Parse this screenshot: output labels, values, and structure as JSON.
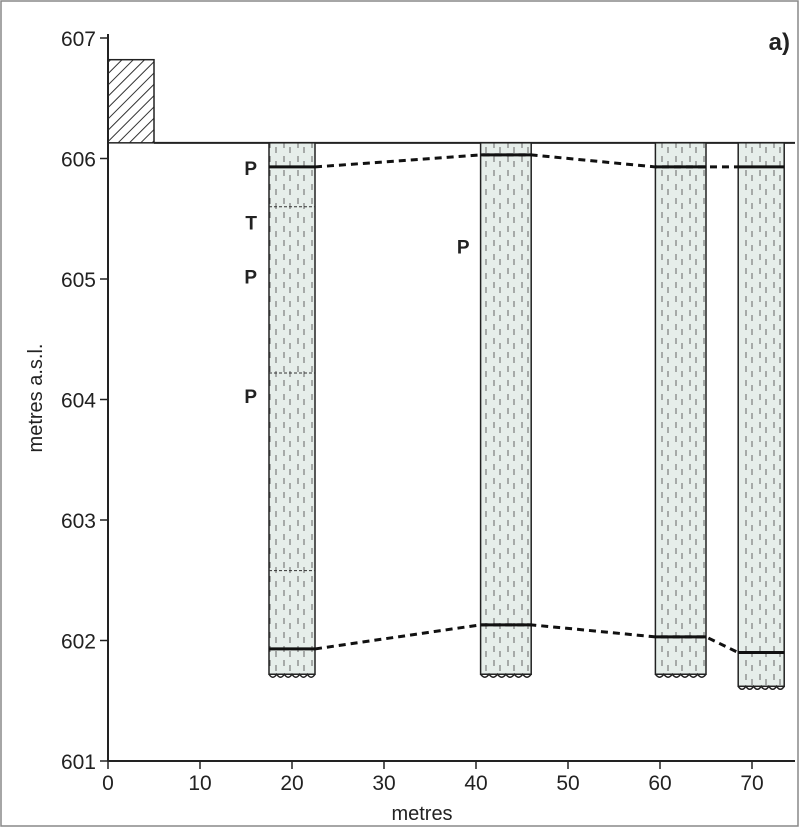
{
  "panel_label": "a)",
  "chart_data": {
    "type": "stratigraphic-cross-section",
    "xlabel": "metres",
    "ylabel": "metres a.s.l.",
    "xlim": [
      0,
      75
    ],
    "ylim": [
      601,
      607
    ],
    "x_ticks": [
      0,
      10,
      20,
      30,
      40,
      50,
      60,
      70
    ],
    "y_ticks": [
      601,
      602,
      603,
      604,
      605,
      606,
      607
    ],
    "surface_elevation": 606.13,
    "hatched_block": {
      "x": [
        0,
        5
      ],
      "y": [
        606.13,
        606.82
      ]
    },
    "columns": [
      {
        "x_left": 17.5,
        "x_right": 22.5,
        "top": 606.13,
        "bottom": 601.72,
        "upper_contact": 605.93,
        "lower_contact": 601.93,
        "facies_breaks": [
          605.6,
          604.22,
          602.58
        ]
      },
      {
        "x_left": 40.5,
        "x_right": 46,
        "top": 606.13,
        "bottom": 601.72,
        "upper_contact": 606.03,
        "lower_contact": 602.13,
        "facies_breaks": []
      },
      {
        "x_left": 59.5,
        "x_right": 65,
        "top": 606.13,
        "bottom": 601.72,
        "upper_contact": 605.93,
        "lower_contact": 602.03,
        "facies_breaks": []
      },
      {
        "x_left": 68.5,
        "x_right": 73.5,
        "top": 606.13,
        "bottom": 601.62,
        "upper_contact": 605.93,
        "lower_contact": 601.9,
        "facies_breaks": []
      }
    ],
    "correlation_lines": [
      {
        "name": "upper",
        "points": [
          [
            22.5,
            605.93
          ],
          [
            40.5,
            606.03
          ],
          [
            46,
            606.03
          ],
          [
            59.5,
            605.93
          ],
          [
            65,
            605.93
          ],
          [
            68.5,
            605.93
          ]
        ]
      },
      {
        "name": "lower",
        "points": [
          [
            22.5,
            601.93
          ],
          [
            40.5,
            602.13
          ],
          [
            46,
            602.13
          ],
          [
            59.5,
            602.03
          ],
          [
            65,
            602.03
          ],
          [
            68.5,
            601.9
          ]
        ]
      }
    ],
    "annotations": [
      {
        "text": "P",
        "x": 16.2,
        "y": 605.92
      },
      {
        "text": "T",
        "x": 16.2,
        "y": 605.47
      },
      {
        "text": "P",
        "x": 16.2,
        "y": 605.02
      },
      {
        "text": "P",
        "x": 16.2,
        "y": 604.03
      },
      {
        "text": "P",
        "x": 39.3,
        "y": 605.27
      }
    ]
  }
}
